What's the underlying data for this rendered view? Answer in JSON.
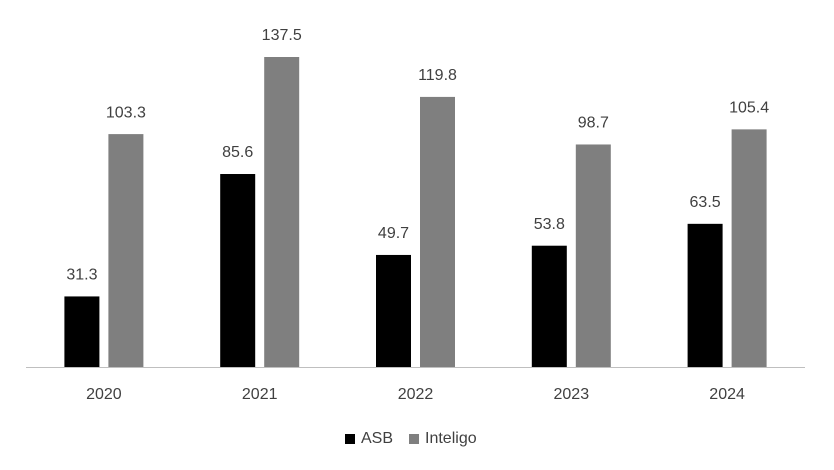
{
  "chart_data": {
    "type": "bar",
    "categories": [
      "2020",
      "2021",
      "2022",
      "2023",
      "2024"
    ],
    "series": [
      {
        "name": "ASB",
        "color": "#000000",
        "values": [
          31.3,
          85.6,
          49.7,
          53.8,
          63.5
        ]
      },
      {
        "name": "Inteligo",
        "color": "#7f7f7f",
        "values": [
          103.3,
          137.5,
          119.8,
          98.7,
          105.4
        ]
      }
    ],
    "legend": "bottom"
  }
}
